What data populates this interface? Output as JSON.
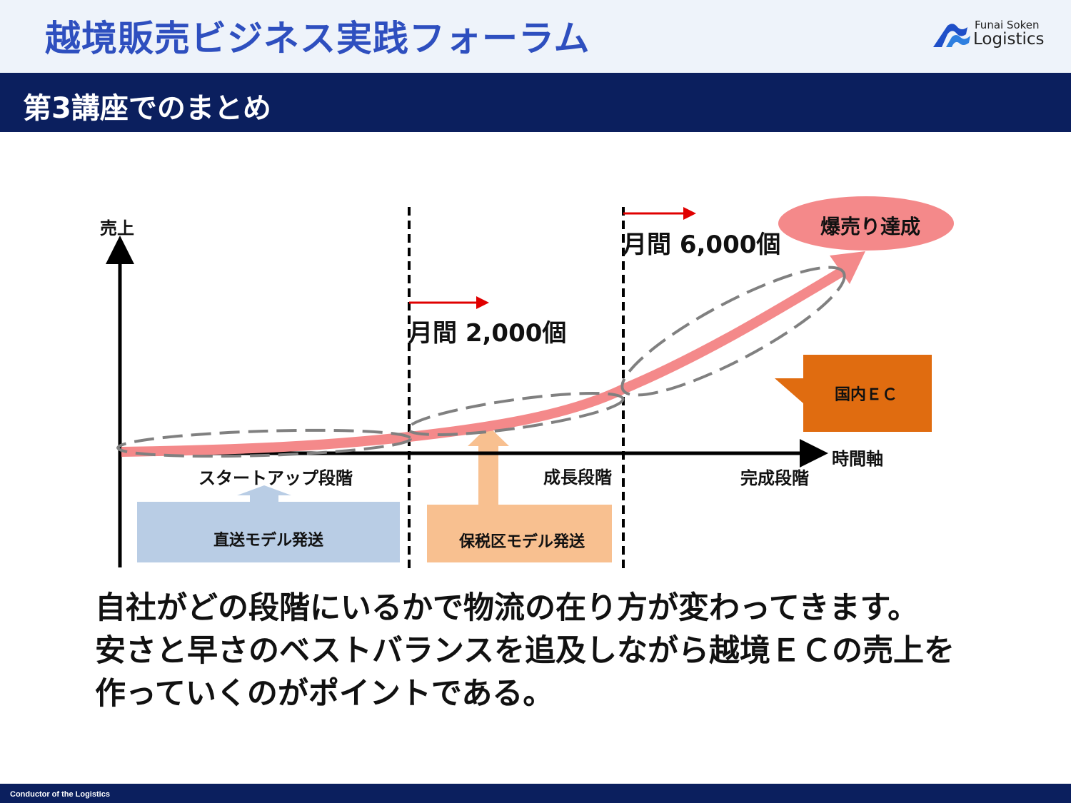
{
  "header": {
    "title": "越境販売ビジネス実践フォーラム",
    "logo": {
      "line1": "Funai Soken",
      "line2": "Logistics"
    }
  },
  "section": {
    "title": "第3講座でのまとめ"
  },
  "diagram": {
    "y_axis_label": "売上",
    "x_axis_label": "時間軸",
    "goal_label": "爆売り達成",
    "milestones": [
      {
        "label": "月間 2,000個"
      },
      {
        "label": "月間 6,000個"
      }
    ],
    "stages": [
      {
        "label": "スタートアップ段階"
      },
      {
        "label": "成長段階"
      },
      {
        "label": "完成段階"
      }
    ],
    "shipping_models": [
      {
        "label": "直送モデル発送",
        "color": "#b9cde5"
      },
      {
        "label": "保税区モデル発送",
        "color": "#f8c090"
      }
    ],
    "callout": {
      "label": "国内ＥＣ",
      "color": "#e06c10"
    },
    "colors": {
      "growth_curve": "#f4898a",
      "milestone_arrow": "#e00000"
    }
  },
  "summary": {
    "lines": [
      "自社がどの段階にいるかで物流の在り方が変わってきます。",
      "安さと早さのベストバランスを追及しながら越境ＥＣの売上を",
      "作っていくのがポイントである。"
    ]
  },
  "footer": {
    "text": "Conductor of the Logistics"
  }
}
